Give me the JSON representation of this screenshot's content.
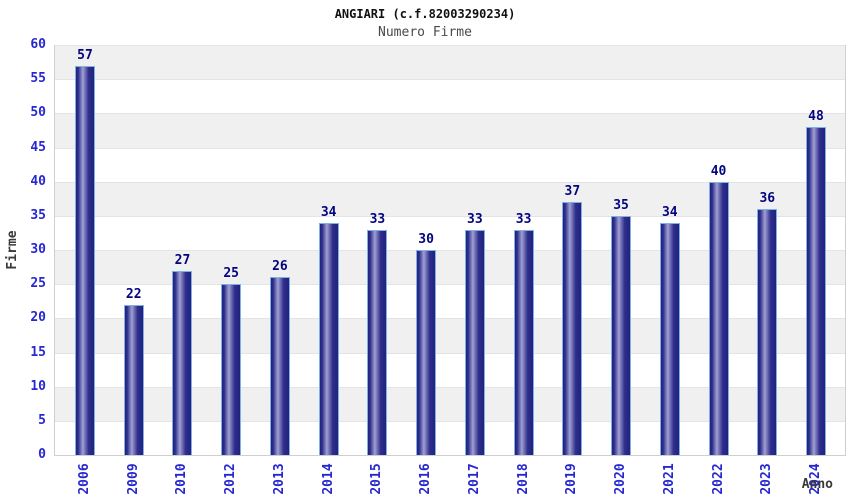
{
  "chart_data": {
    "type": "bar",
    "title": "ANGIARI (c.f.82003290234)",
    "subtitle": "Numero Firme",
    "xlabel": "Anno",
    "ylabel": "Firme",
    "categories": [
      "2006",
      "2009",
      "2010",
      "2012",
      "2013",
      "2014",
      "2015",
      "2016",
      "2017",
      "2018",
      "2019",
      "2020",
      "2021",
      "2022",
      "2023",
      "2024"
    ],
    "values": [
      57,
      22,
      27,
      25,
      26,
      34,
      33,
      30,
      33,
      33,
      37,
      35,
      34,
      40,
      36,
      48
    ],
    "ylim": [
      0,
      60
    ],
    "ytick_step": 5,
    "grid": true,
    "legend": "none",
    "banded_background": true,
    "colors": {
      "bar_dark": "#22227e",
      "bar_mid": "#2e2e8c",
      "bar_light": "#a0a0d4",
      "bar_border": "#7db2e4",
      "tick_label": "#2727cf",
      "value_label": "#04047e",
      "band_gray": "#f0f0f0",
      "band_white": "#ffffff",
      "gridline": "#e4e4e4",
      "plot_border": "#cfcfcf",
      "title": "#111111",
      "subtitle": "#4a4a4a",
      "axis_title": "#3a3a3a"
    }
  }
}
